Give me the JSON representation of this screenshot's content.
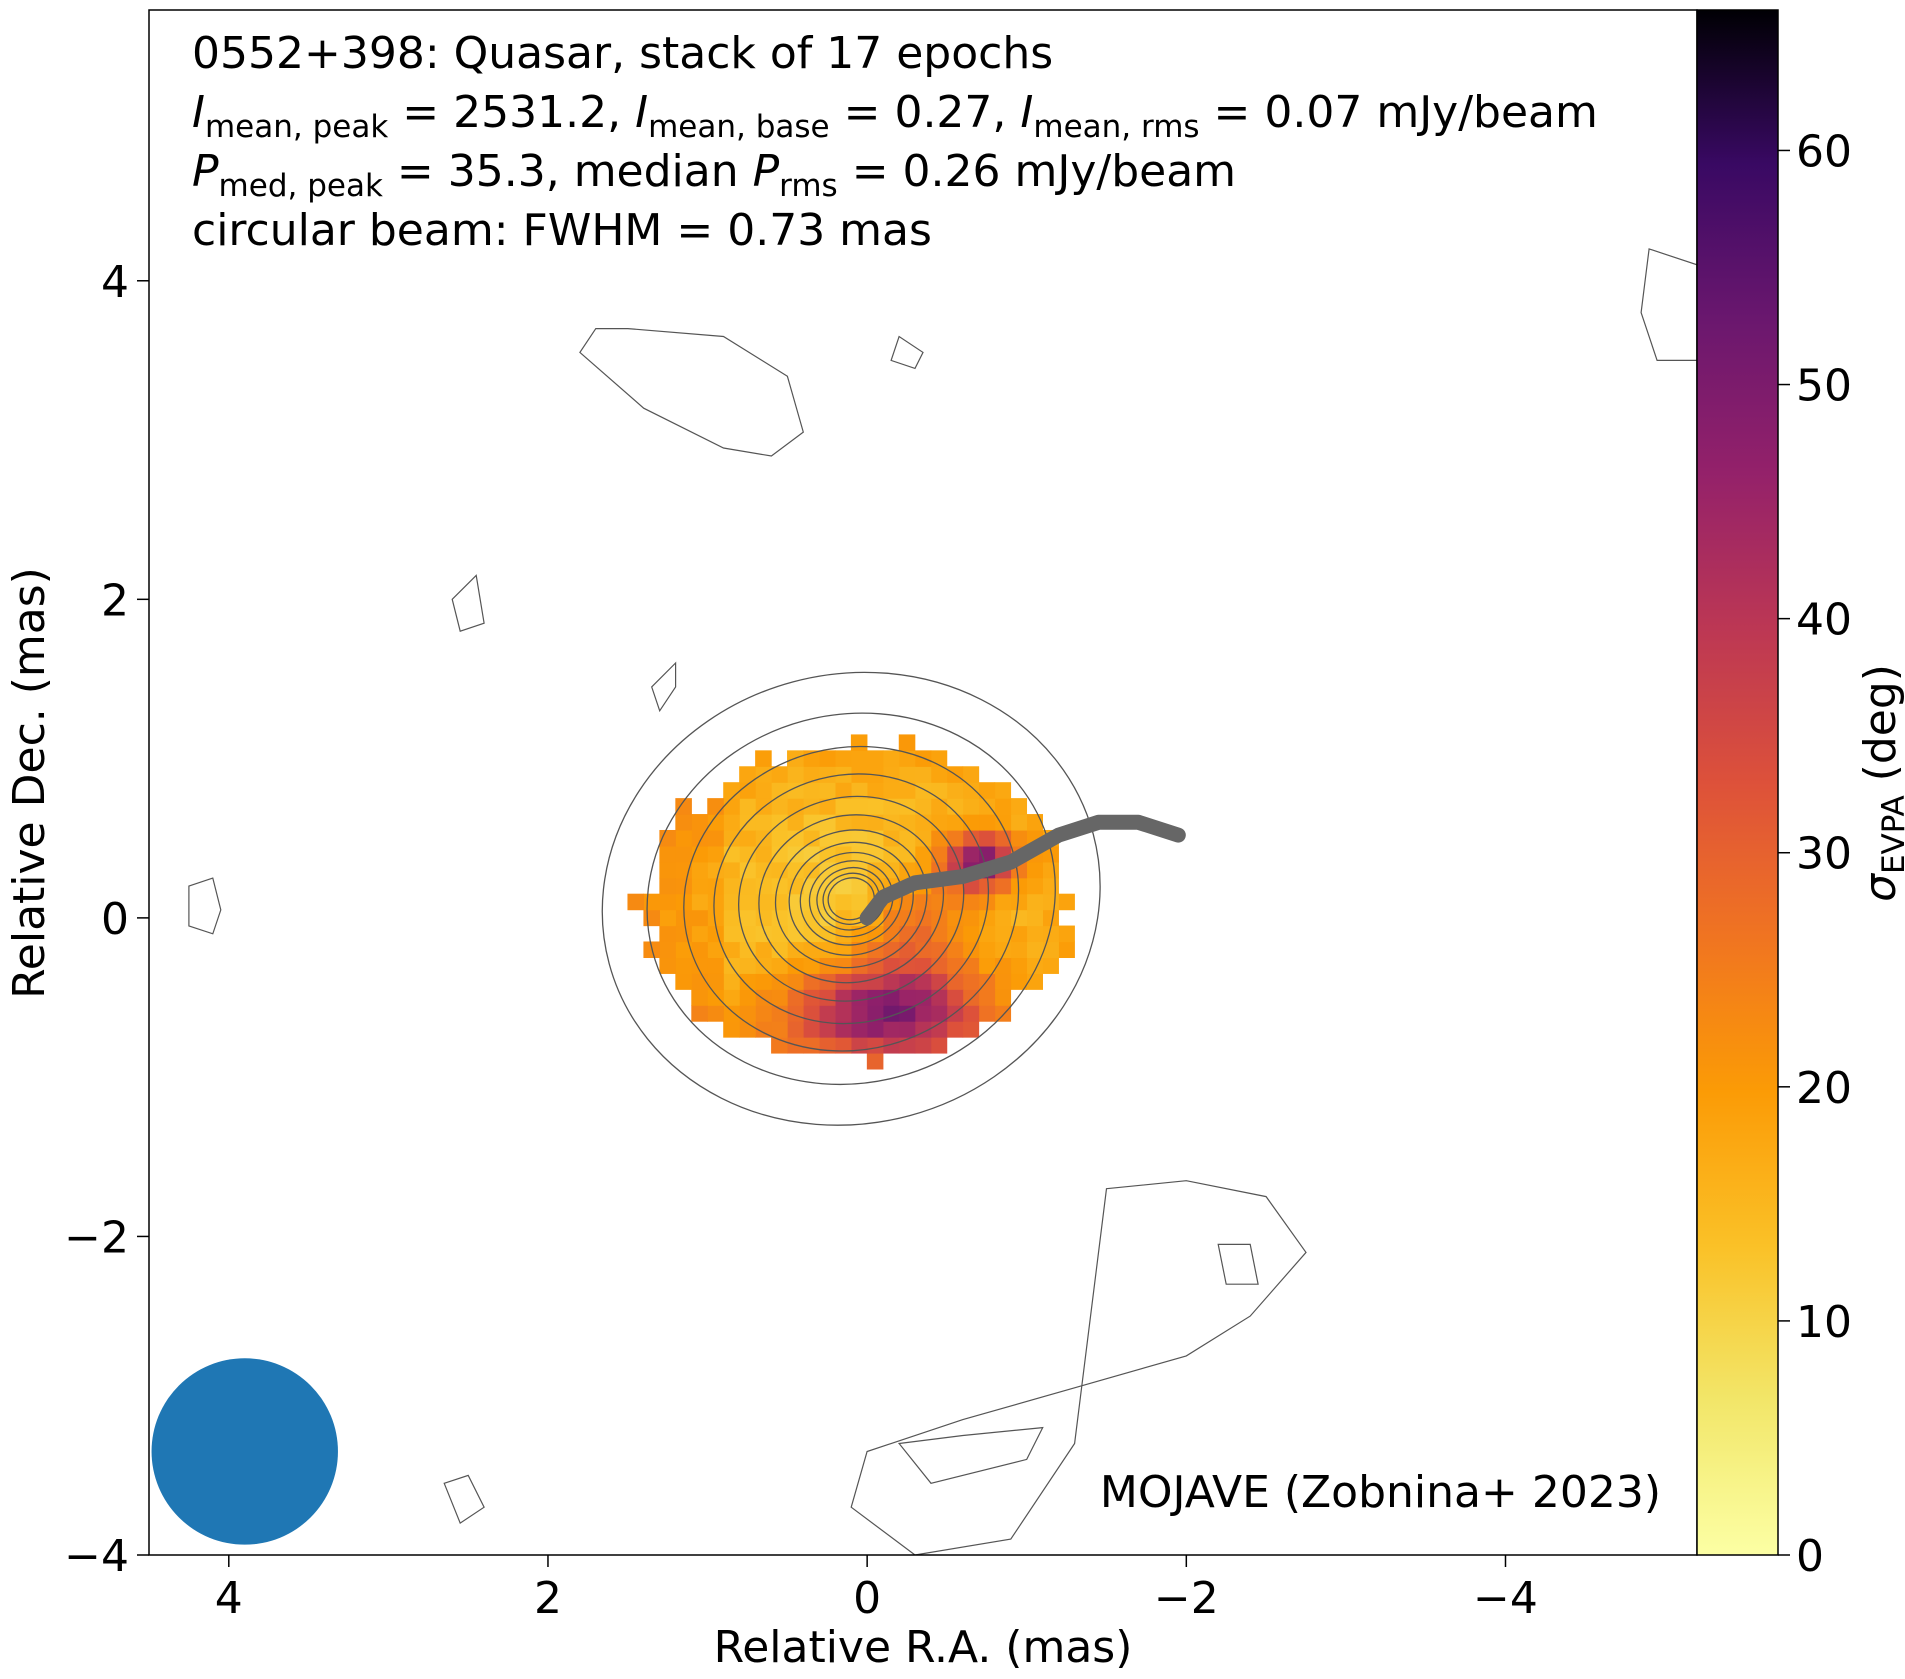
{
  "chart_data": {
    "type": "heatmap",
    "info_lines": [
      [
        {
          "t": "0552+398: Quasar, stack of 17 epochs"
        }
      ],
      [
        {
          "t": "I",
          "i": true
        },
        {
          "t": "mean, peak",
          "sub": true
        },
        {
          "t": " = 2531.2, "
        },
        {
          "t": "I",
          "i": true
        },
        {
          "t": "mean, base",
          "sub": true
        },
        {
          "t": " = 0.27, "
        },
        {
          "t": "I",
          "i": true
        },
        {
          "t": "mean, rms",
          "sub": true
        },
        {
          "t": " = 0.07 mJy/beam"
        }
      ],
      [
        {
          "t": "P",
          "i": true
        },
        {
          "t": "med, peak",
          "sub": true
        },
        {
          "t": " = 35.3, median "
        },
        {
          "t": "P",
          "i": true
        },
        {
          "t": "rms",
          "sub": true
        },
        {
          "t": " = 0.26 mJy/beam"
        }
      ],
      [
        {
          "t": "circular beam: FWHM = 0.73 mas"
        }
      ]
    ],
    "credit": "MOJAVE (Zobnina+ 2023)",
    "x_axis": {
      "label": "Relative R.A. (mas)",
      "range": [
        4.5,
        -5.2
      ],
      "ticks": [
        {
          "v": 4,
          "label": "4"
        },
        {
          "v": 2,
          "label": "2"
        },
        {
          "v": 0,
          "label": "0"
        },
        {
          "v": -2,
          "label": "−2"
        },
        {
          "v": -4,
          "label": "−4"
        }
      ]
    },
    "y_axis": {
      "label": "Relative Dec. (mas)",
      "range": [
        -4.0,
        5.7
      ],
      "ticks": [
        {
          "v": -4,
          "label": "−4"
        },
        {
          "v": -2,
          "label": "−2"
        },
        {
          "v": 0,
          "label": "0"
        },
        {
          "v": 2,
          "label": "2"
        },
        {
          "v": 4,
          "label": "4"
        }
      ]
    },
    "colorbar": {
      "label_symbol": "σ",
      "label_sub": "EVPA",
      "label_rest": " (deg)",
      "range": [
        0,
        66
      ],
      "colormap": "inferno_r",
      "ticks": [
        {
          "v": 0,
          "label": "0"
        },
        {
          "v": 10,
          "label": "10"
        },
        {
          "v": 20,
          "label": "20"
        },
        {
          "v": 30,
          "label": "30"
        },
        {
          "v": 40,
          "label": "40"
        },
        {
          "v": 50,
          "label": "50"
        },
        {
          "v": 60,
          "label": "60"
        }
      ]
    },
    "stokes_i_contours": {
      "shape": "ellipse",
      "center_mas": [
        0.1,
        0.12
      ],
      "outer_semi_axes_mas": [
        1.57,
        1.41
      ],
      "rotation_deg": -15,
      "count": 13,
      "color": "#555555"
    },
    "noise_contours": [
      {
        "x": [
          1.5,
          0.9,
          0.5,
          0.4,
          0.6,
          0.9,
          1.4,
          1.8,
          1.7,
          1.5
        ],
        "y": [
          3.7,
          3.65,
          3.4,
          3.05,
          2.9,
          2.95,
          3.2,
          3.55,
          3.7,
          3.7
        ]
      },
      {
        "x": [
          -0.15,
          -0.2,
          -0.35,
          -0.3,
          -0.15
        ],
        "y": [
          3.5,
          3.65,
          3.55,
          3.45,
          3.5
        ]
      },
      {
        "x": [
          -4.9,
          -5.2,
          -5.2,
          -4.95,
          -4.85,
          -4.9
        ],
        "y": [
          4.2,
          4.1,
          3.5,
          3.5,
          3.8,
          4.2
        ]
      },
      {
        "x": [
          2.45,
          2.6,
          2.55,
          2.4,
          2.45
        ],
        "y": [
          2.15,
          2.0,
          1.8,
          1.85,
          2.15
        ]
      },
      {
        "x": [
          1.2,
          1.35,
          1.3,
          1.2,
          1.2
        ],
        "y": [
          1.6,
          1.45,
          1.3,
          1.45,
          1.6
        ]
      },
      {
        "x": [
          4.1,
          4.25,
          4.25,
          4.1,
          4.05,
          4.1
        ],
        "y": [
          0.25,
          0.2,
          -0.05,
          -0.1,
          0.05,
          0.25
        ]
      },
      {
        "x": [
          -1.5,
          -2.0,
          -2.5,
          -2.75,
          -2.4,
          -2.0,
          -1.3,
          -0.6,
          0.0,
          0.1,
          -0.3,
          -0.9,
          -1.3,
          -1.5
        ],
        "y": [
          -1.7,
          -1.65,
          -1.75,
          -2.1,
          -2.5,
          -2.75,
          -2.95,
          -3.15,
          -3.35,
          -3.7,
          -4.0,
          -3.9,
          -3.3,
          -1.7
        ]
      },
      {
        "x": [
          -2.2,
          -2.4,
          -2.45,
          -2.25,
          -2.2
        ],
        "y": [
          -2.05,
          -2.05,
          -2.3,
          -2.3,
          -2.05
        ]
      },
      {
        "x": [
          -0.2,
          -0.6,
          -1.1,
          -1.0,
          -0.4,
          -0.2
        ],
        "y": [
          -3.3,
          -3.25,
          -3.2,
          -3.4,
          -3.55,
          -3.3
        ]
      },
      {
        "x": [
          2.65,
          2.5,
          2.4,
          2.55,
          2.65
        ],
        "y": [
          -3.55,
          -3.5,
          -3.7,
          -3.8,
          -3.55
        ]
      }
    ],
    "jet_ridge_line": {
      "color": "#666666",
      "x": [
        0.0,
        -0.1,
        -0.3,
        -0.6,
        -0.9,
        -1.2,
        -1.45,
        -1.7,
        -1.95
      ],
      "y": [
        0.0,
        0.13,
        0.22,
        0.26,
        0.35,
        0.52,
        0.6,
        0.6,
        0.52
      ]
    },
    "beam": {
      "center_mas": [
        3.9,
        -3.35
      ],
      "fwhm_mas": 0.73,
      "color": "#1f77b4"
    },
    "evpa_map_note": "sigma_EVPA pixel map centred on the core; low values (yellow/orange) toward the east and north, high values (purple/black) south and north-west of the core"
  }
}
